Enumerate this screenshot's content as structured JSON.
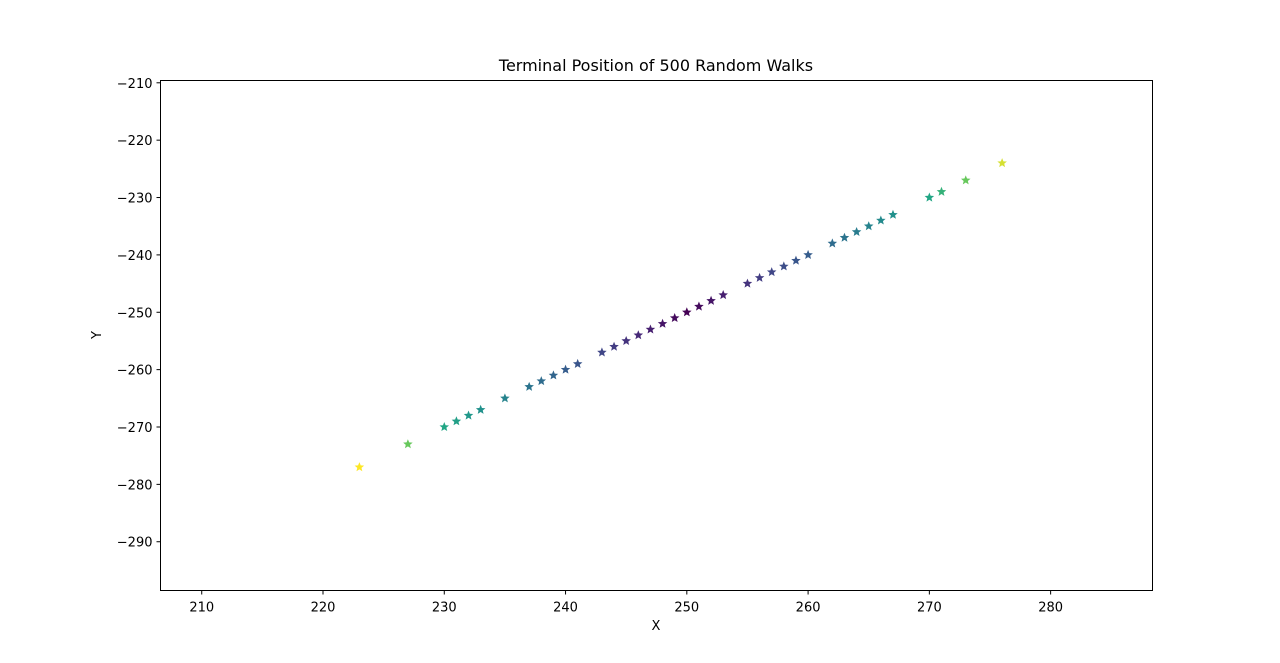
{
  "chart_data": {
    "type": "scatter",
    "title": "Terminal Position of 500 Random Walks",
    "xlabel": "X",
    "ylabel": "Y",
    "xlim": [
      206.6,
      288.4
    ],
    "ylim": [
      -298.5,
      -209.6
    ],
    "xticks": [
      210,
      220,
      230,
      240,
      250,
      260,
      270,
      280
    ],
    "yticks": [
      -210,
      -220,
      -230,
      -240,
      -250,
      -260,
      -270,
      -280,
      -290
    ],
    "xtick_labels": [
      "210",
      "220",
      "230",
      "240",
      "250",
      "260",
      "270",
      "280"
    ],
    "ytick_labels": [
      "−210",
      "−220",
      "−230",
      "−240",
      "−250",
      "−260",
      "−270",
      "−280",
      "−290"
    ],
    "marker": "star",
    "colormap": "viridis",
    "grid": false,
    "points": [
      {
        "x": 223,
        "y": -277
      },
      {
        "x": 227,
        "y": -273
      },
      {
        "x": 230,
        "y": -270
      },
      {
        "x": 231,
        "y": -269
      },
      {
        "x": 232,
        "y": -268
      },
      {
        "x": 233,
        "y": -267
      },
      {
        "x": 235,
        "y": -265
      },
      {
        "x": 237,
        "y": -263
      },
      {
        "x": 238,
        "y": -262
      },
      {
        "x": 239,
        "y": -261
      },
      {
        "x": 240,
        "y": -260
      },
      {
        "x": 241,
        "y": -259
      },
      {
        "x": 243,
        "y": -257
      },
      {
        "x": 244,
        "y": -256
      },
      {
        "x": 245,
        "y": -255
      },
      {
        "x": 246,
        "y": -254
      },
      {
        "x": 247,
        "y": -253
      },
      {
        "x": 248,
        "y": -252
      },
      {
        "x": 249,
        "y": -251
      },
      {
        "x": 250,
        "y": -250
      },
      {
        "x": 251,
        "y": -249
      },
      {
        "x": 252,
        "y": -248
      },
      {
        "x": 253,
        "y": -247
      },
      {
        "x": 255,
        "y": -245
      },
      {
        "x": 256,
        "y": -244
      },
      {
        "x": 257,
        "y": -243
      },
      {
        "x": 258,
        "y": -242
      },
      {
        "x": 259,
        "y": -241
      },
      {
        "x": 260,
        "y": -240
      },
      {
        "x": 262,
        "y": -238
      },
      {
        "x": 263,
        "y": -237
      },
      {
        "x": 264,
        "y": -236
      },
      {
        "x": 265,
        "y": -235
      },
      {
        "x": 266,
        "y": -234
      },
      {
        "x": 267,
        "y": -233
      },
      {
        "x": 270,
        "y": -230
      },
      {
        "x": 271,
        "y": -229
      },
      {
        "x": 273,
        "y": -227
      },
      {
        "x": 276,
        "y": -224
      }
    ]
  }
}
